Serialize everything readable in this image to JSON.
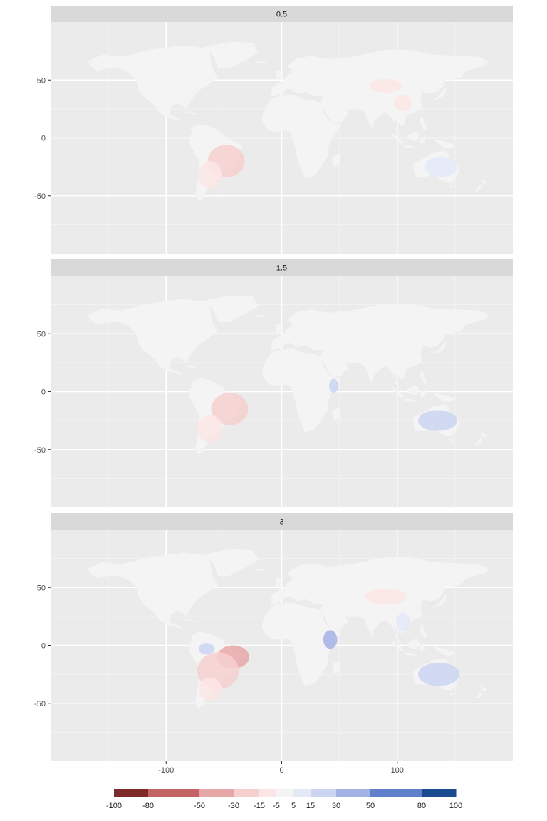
{
  "chart_data": {
    "type": "heatmap",
    "title": "",
    "xlabel": "",
    "ylabel": "",
    "xlim": [
      -200,
      200
    ],
    "ylim": [
      -100,
      100
    ],
    "x_ticks": [
      -100,
      0,
      100
    ],
    "y_ticks": [
      50,
      0,
      -50
    ],
    "grid": true,
    "panels": [
      {
        "label": "0.5",
        "hotspots": [
          {
            "region": "South America (east)",
            "lon": -48,
            "lat": -20,
            "rx": 16,
            "ry": 14,
            "value": -18
          },
          {
            "region": "South America (south)",
            "lon": -62,
            "lat": -32,
            "rx": 10,
            "ry": 12,
            "value": -8
          },
          {
            "region": "Central Asia",
            "lon": 90,
            "lat": 45,
            "rx": 14,
            "ry": 6,
            "value": -8
          },
          {
            "region": "East Asia",
            "lon": 105,
            "lat": 30,
            "rx": 8,
            "ry": 7,
            "value": -6
          },
          {
            "region": "Australia",
            "lon": 138,
            "lat": -25,
            "rx": 14,
            "ry": 9,
            "value": 10
          }
        ]
      },
      {
        "label": "1.5",
        "hotspots": [
          {
            "region": "South America (east)",
            "lon": -45,
            "lat": -15,
            "rx": 16,
            "ry": 14,
            "value": -22
          },
          {
            "region": "South America (south)",
            "lon": -62,
            "lat": -32,
            "rx": 11,
            "ry": 12,
            "value": -12
          },
          {
            "region": "East Africa",
            "lon": 45,
            "lat": 5,
            "rx": 4,
            "ry": 6,
            "value": 25
          },
          {
            "region": "Australia",
            "lon": 135,
            "lat": -25,
            "rx": 17,
            "ry": 9,
            "value": 16
          }
        ]
      },
      {
        "label": "3",
        "hotspots": [
          {
            "region": "Brazil (northeast)",
            "lon": -42,
            "lat": -10,
            "rx": 14,
            "ry": 10,
            "value": -45
          },
          {
            "region": "South America (central)",
            "lon": -55,
            "lat": -22,
            "rx": 18,
            "ry": 16,
            "value": -25
          },
          {
            "region": "South America (south)",
            "lon": -62,
            "lat": -38,
            "rx": 10,
            "ry": 10,
            "value": -12
          },
          {
            "region": "Amazon (northwest)",
            "lon": -65,
            "lat": -3,
            "rx": 7,
            "ry": 5,
            "value": 18
          },
          {
            "region": "East Africa",
            "lon": 42,
            "lat": 5,
            "rx": 6,
            "ry": 8,
            "value": 42
          },
          {
            "region": "Central Asia",
            "lon": 90,
            "lat": 42,
            "rx": 18,
            "ry": 7,
            "value": -10
          },
          {
            "region": "Australia",
            "lon": 136,
            "lat": -25,
            "rx": 18,
            "ry": 10,
            "value": 25
          },
          {
            "region": "Southeast Asia",
            "lon": 105,
            "lat": 20,
            "rx": 6,
            "ry": 8,
            "value": 10
          }
        ]
      }
    ],
    "legend": {
      "position": "bottom",
      "breaks": [
        -100,
        -80,
        -50,
        -30,
        -15,
        -5,
        5,
        15,
        30,
        50,
        80,
        100
      ],
      "labels": [
        "-100",
        "-80",
        "-50",
        "-30",
        "-15",
        "-5",
        "5",
        "15",
        "30",
        "50",
        "80",
        "100"
      ],
      "colors": [
        "#7f2a2a",
        "#c26463",
        "#e6a8a7",
        "#f6d0cf",
        "#fbe6e5",
        "#f4f4f4",
        "#e4e9f8",
        "#cbd4f1",
        "#a3b2e4",
        "#5f7fcb",
        "#1a4a8f"
      ]
    }
  }
}
